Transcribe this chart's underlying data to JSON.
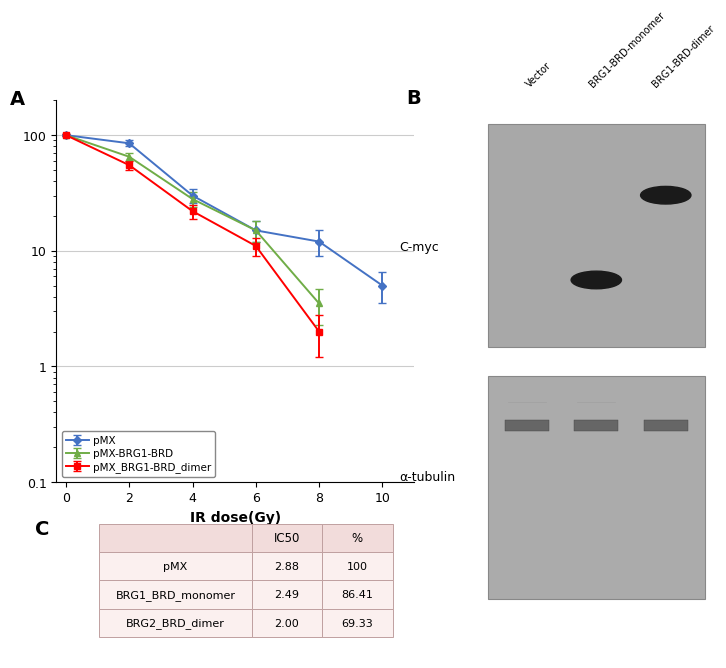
{
  "panel_A": {
    "x": [
      0,
      2,
      4,
      6,
      8,
      10
    ],
    "pmx_y": [
      100,
      85,
      30,
      15,
      12,
      5
    ],
    "pmx_yerr": [
      2,
      5,
      4,
      3,
      3,
      1.5
    ],
    "monomer_y": [
      100,
      65,
      28,
      15,
      3.5
    ],
    "monomer_yerr": [
      2,
      5,
      4,
      3,
      1.2
    ],
    "dimer_y": [
      100,
      55,
      22,
      11,
      2
    ],
    "dimer_yerr": [
      2,
      5,
      3,
      2,
      0.8
    ],
    "pmx_color": "#4472C4",
    "monomer_color": "#70AD47",
    "dimer_color": "#FF0000",
    "xlabel": "IR dose(Gy)",
    "ylim_log": [
      0.1,
      200
    ],
    "xlim": [
      -0.3,
      11
    ],
    "legend": [
      "pMX",
      "pMX-BRG1-BRD",
      "pMX_BRG1-BRD_dimer"
    ]
  },
  "panel_C": {
    "headers": [
      "",
      "IC50",
      "%"
    ],
    "rows": [
      [
        "pMX",
        "2.88",
        "100"
      ],
      [
        "BRG1_BRD_monomer",
        "2.49",
        "86.41"
      ],
      [
        "BRG2_BRD_dimer",
        "2.00",
        "69.33"
      ]
    ],
    "header_bg": "#F2DCDB",
    "row_bg": "#FBF0EF",
    "border_color": "#C0A0A0"
  },
  "panel_B": {
    "gel1_bg": "#A8A8A8",
    "gel2_bg": "#ABABAB",
    "band_color": "#1a1a1a",
    "tub_band_color": "#666666",
    "label_cmyc": "C-myc",
    "label_tubulin": "α-tubulin",
    "col_labels": [
      "Vector",
      "BRG1-BRD-monomer",
      "BRG1-BRD-dimer"
    ]
  },
  "figure_bg": "#FFFFFF"
}
